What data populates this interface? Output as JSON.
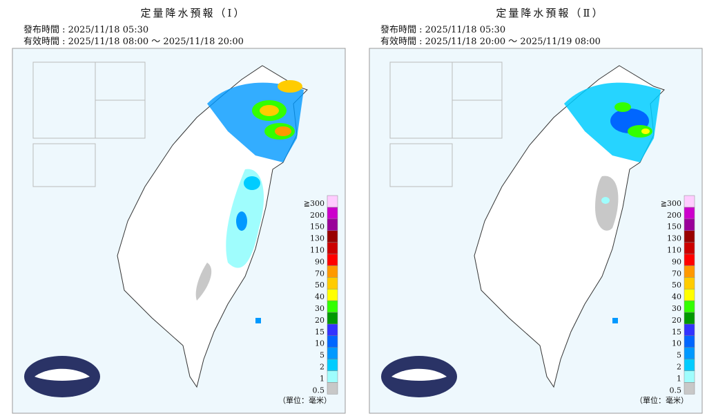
{
  "panels": [
    {
      "title": "定量降水預報（Ⅰ）",
      "issued": "發布時間 : 2025/11/18 05:30",
      "valid": "有效時間 : 2025/11/18 08:00 ～ 2025/11/18 20:00",
      "unit": "（單位：毫米）"
    },
    {
      "title": "定量降水預報（Ⅱ）",
      "issued": "發布時間 : 2025/11/18 05:30",
      "valid": "有效時間 : 2025/11/18 20:00 ～ 2025/11/19 08:00",
      "unit": "（單位：毫米）"
    }
  ],
  "legend": [
    {
      "label": "0.5",
      "color": "#c8c8c8"
    },
    {
      "label": "1",
      "color": "#9ffdfd"
    },
    {
      "label": "2",
      "color": "#00ccff"
    },
    {
      "label": "5",
      "color": "#0099ff"
    },
    {
      "label": "10",
      "color": "#0066ff"
    },
    {
      "label": "15",
      "color": "#3333ff"
    },
    {
      "label": "20",
      "color": "#009900"
    },
    {
      "label": "30",
      "color": "#33ff00"
    },
    {
      "label": "40",
      "color": "#ffff00"
    },
    {
      "label": "50",
      "color": "#ffcc00"
    },
    {
      "label": "70",
      "color": "#ff9900"
    },
    {
      "label": "90",
      "color": "#ff0000"
    },
    {
      "label": "110",
      "color": "#cc0000"
    },
    {
      "label": "130",
      "color": "#990000"
    },
    {
      "label": "150",
      "color": "#990099"
    },
    {
      "label": "200",
      "color": "#cc00cc"
    },
    {
      "label": "≧300",
      "color": "#ffccff"
    }
  ]
}
